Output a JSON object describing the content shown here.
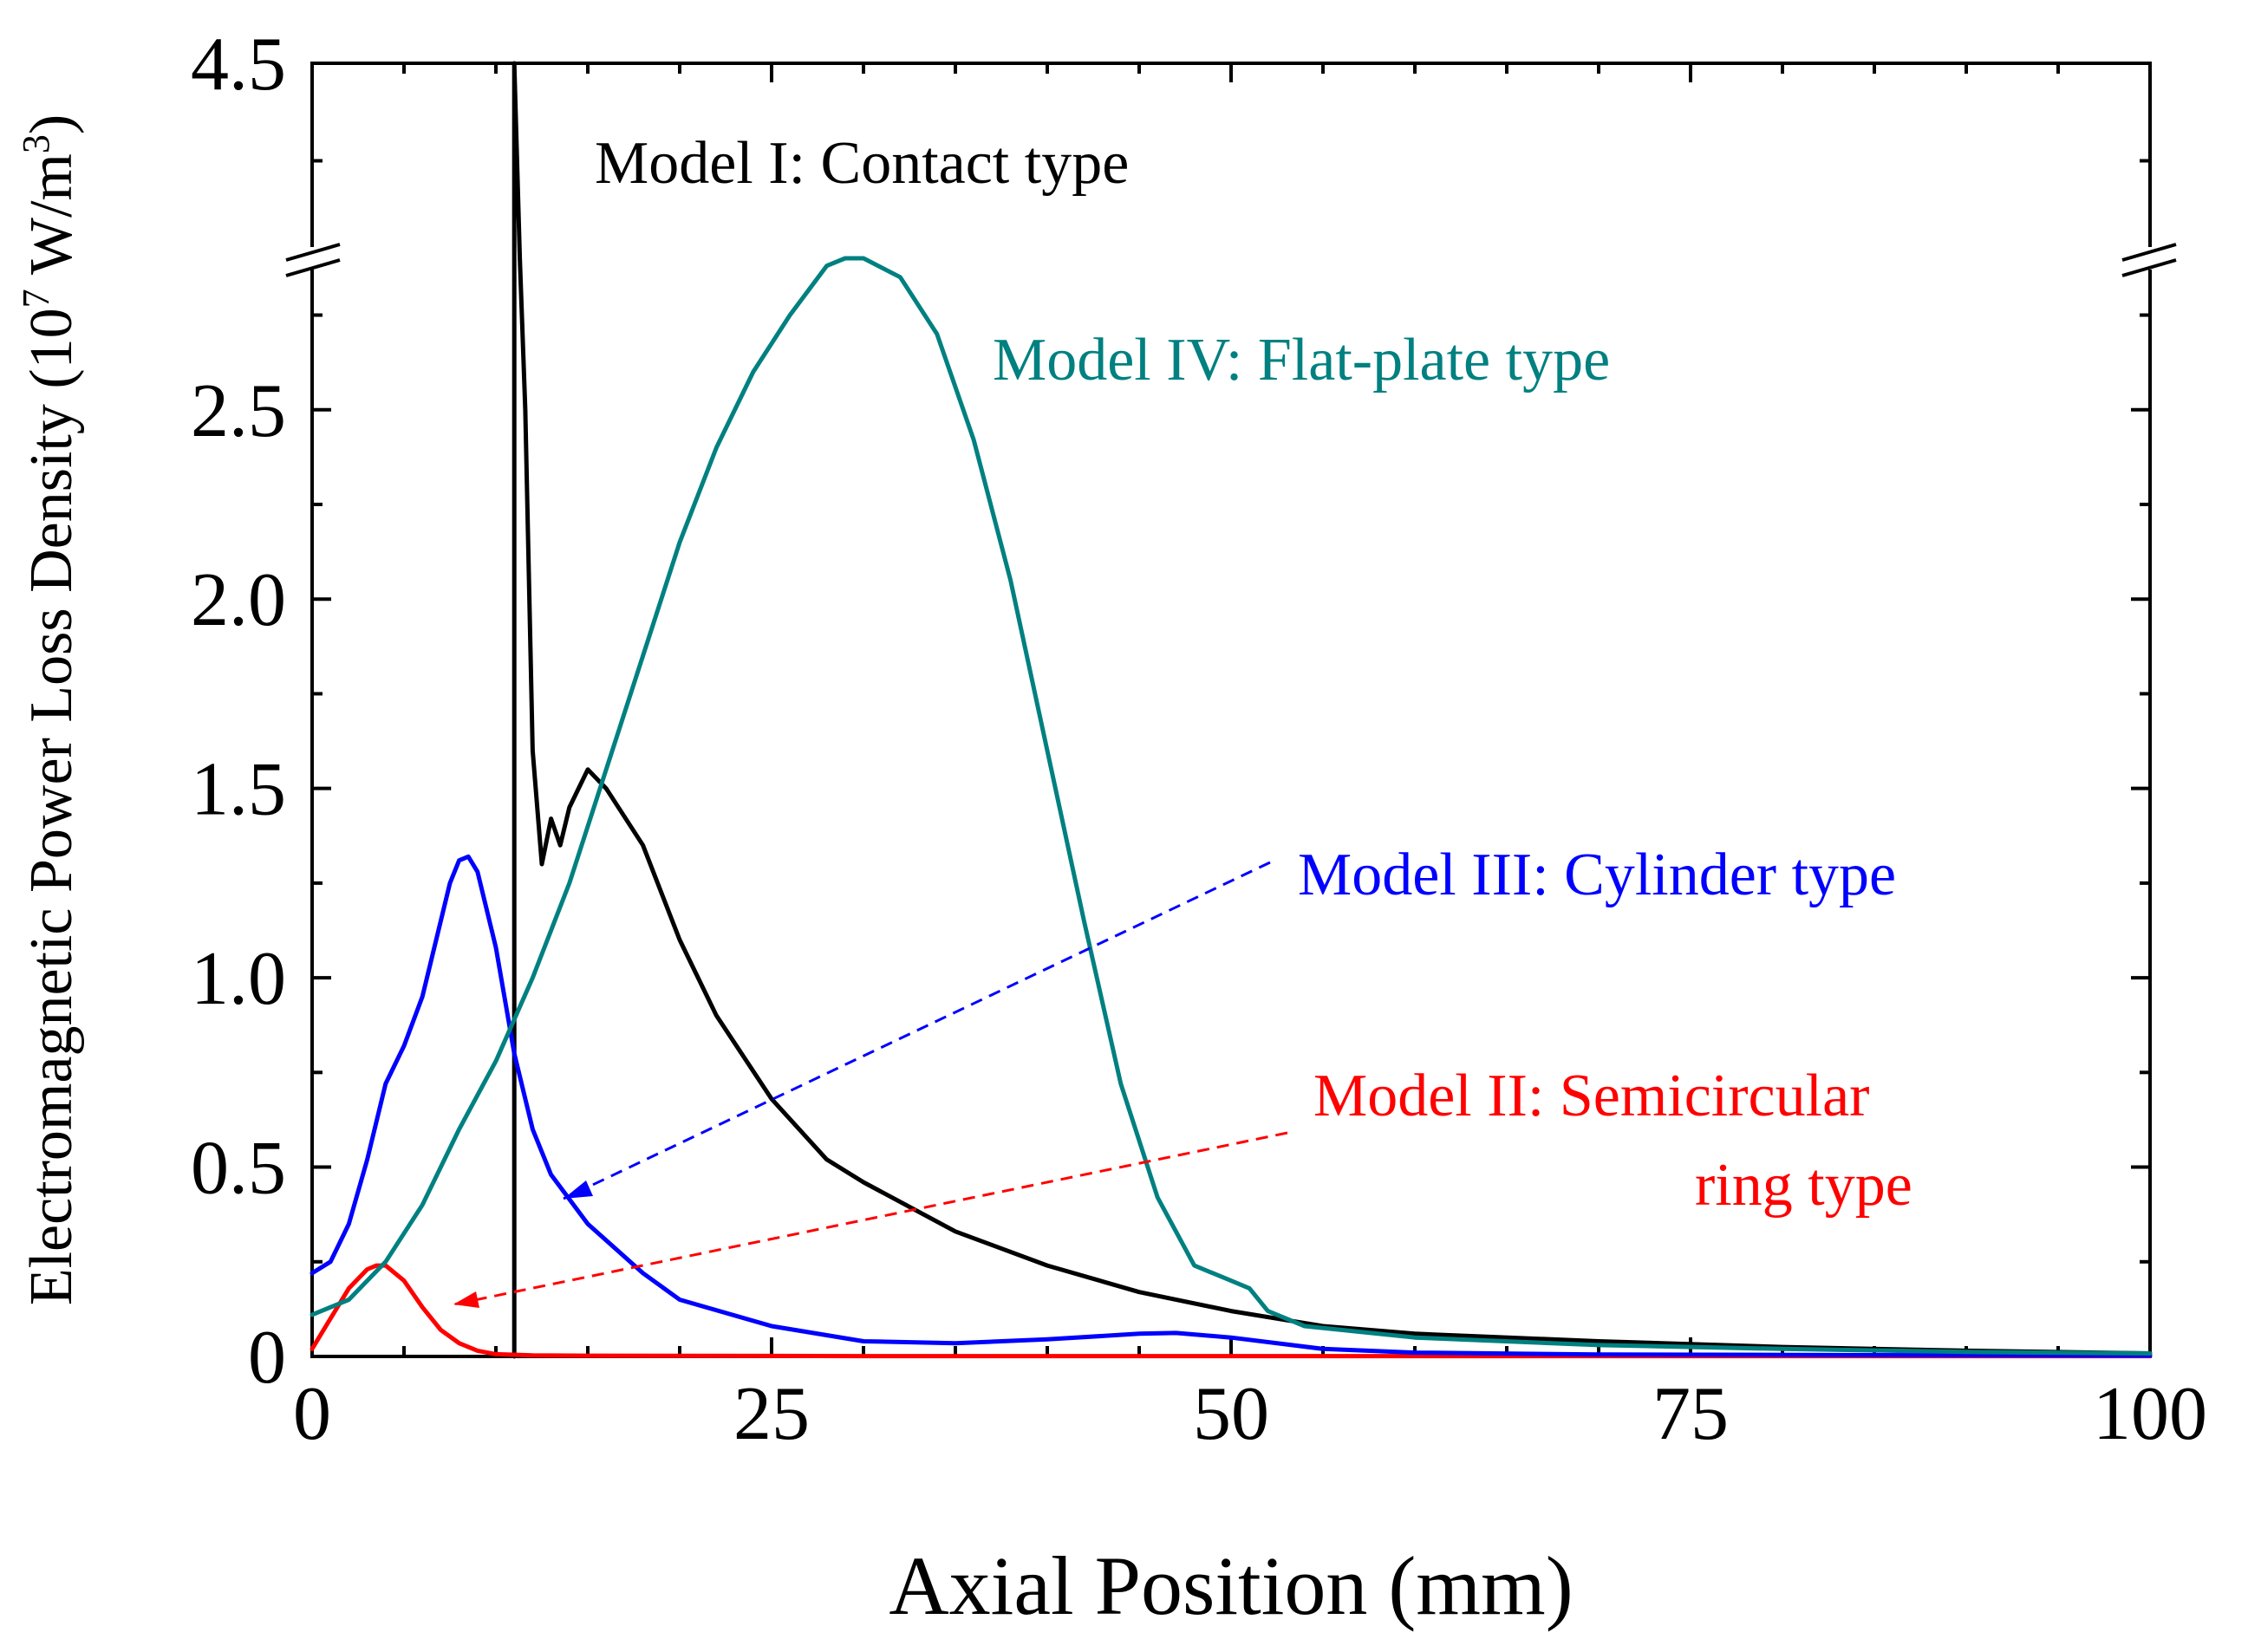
{
  "chart_data": {
    "type": "line",
    "title": "",
    "xlabel": "Axial Position (mm)",
    "ylabel_main": "Electromagnetic Power Loss Density (10",
    "ylabel_sup": "7",
    "ylabel_unit": " W/m",
    "ylabel_sup2": "3",
    "ylabel_close": ")",
    "xlim": [
      0,
      100
    ],
    "ylim_lower": [
      0,
      2.9
    ],
    "ylim_upper": [
      4.0,
      4.5
    ],
    "x_ticks": [
      0,
      25,
      50,
      75,
      100
    ],
    "x_tick_labels": [
      "0",
      "25",
      "50",
      "75",
      "100"
    ],
    "y_ticks": [
      0,
      0.5,
      1.0,
      1.5,
      2.0,
      2.5,
      4.5
    ],
    "y_tick_labels": [
      "0",
      "0.5",
      "1.0",
      "1.5",
      "2.0",
      "2.5",
      "4.5"
    ],
    "grid": false,
    "series": [
      {
        "name": "Model I: Contact type",
        "color": "#000000",
        "points": [
          [
            11,
            0
          ],
          [
            11,
            4.5
          ],
          [
            11.3,
            3.2
          ],
          [
            11.6,
            2.5
          ],
          [
            12,
            1.6
          ],
          [
            12.5,
            1.3
          ],
          [
            13,
            1.42
          ],
          [
            13.5,
            1.35
          ],
          [
            14,
            1.45
          ],
          [
            15,
            1.55
          ],
          [
            16,
            1.5
          ],
          [
            18,
            1.35
          ],
          [
            20,
            1.1
          ],
          [
            22,
            0.9
          ],
          [
            25,
            0.68
          ],
          [
            28,
            0.52
          ],
          [
            30,
            0.46
          ],
          [
            35,
            0.33
          ],
          [
            40,
            0.24
          ],
          [
            45,
            0.17
          ],
          [
            50,
            0.12
          ],
          [
            55,
            0.08
          ],
          [
            60,
            0.06
          ],
          [
            70,
            0.04
          ],
          [
            80,
            0.025
          ],
          [
            90,
            0.015
          ],
          [
            100,
            0.008
          ]
        ]
      },
      {
        "name": "Model II: Semicircular ring type",
        "color": "#ff0000",
        "points": [
          [
            0,
            0.02
          ],
          [
            1,
            0.1
          ],
          [
            2,
            0.18
          ],
          [
            3,
            0.23
          ],
          [
            3.5,
            0.24
          ],
          [
            4,
            0.24
          ],
          [
            5,
            0.2
          ],
          [
            6,
            0.13
          ],
          [
            7,
            0.07
          ],
          [
            8,
            0.035
          ],
          [
            9,
            0.015
          ],
          [
            10,
            0.006
          ],
          [
            12,
            0.003
          ],
          [
            15,
            0.002
          ],
          [
            30,
            0.001
          ],
          [
            50,
            0.001
          ],
          [
            100,
            0.001
          ]
        ]
      },
      {
        "name": "Model III: Cylinder type",
        "color": "#0000ff",
        "points": [
          [
            0,
            0.22
          ],
          [
            1,
            0.25
          ],
          [
            2,
            0.35
          ],
          [
            3,
            0.52
          ],
          [
            4,
            0.72
          ],
          [
            5,
            0.82
          ],
          [
            6,
            0.95
          ],
          [
            7,
            1.15
          ],
          [
            7.5,
            1.25
          ],
          [
            8,
            1.31
          ],
          [
            8.5,
            1.32
          ],
          [
            9,
            1.28
          ],
          [
            10,
            1.08
          ],
          [
            11,
            0.8
          ],
          [
            12,
            0.6
          ],
          [
            13,
            0.48
          ],
          [
            15,
            0.35
          ],
          [
            18,
            0.22
          ],
          [
            20,
            0.15
          ],
          [
            25,
            0.08
          ],
          [
            30,
            0.04
          ],
          [
            35,
            0.035
          ],
          [
            40,
            0.045
          ],
          [
            45,
            0.06
          ],
          [
            47,
            0.062
          ],
          [
            50,
            0.05
          ],
          [
            55,
            0.02
          ],
          [
            60,
            0.01
          ],
          [
            70,
            0.005
          ],
          [
            100,
            0.002
          ]
        ]
      },
      {
        "name": "Model IV: Flat-plate type",
        "color": "#008080",
        "points": [
          [
            0,
            0.11
          ],
          [
            2,
            0.15
          ],
          [
            4,
            0.25
          ],
          [
            6,
            0.4
          ],
          [
            8,
            0.6
          ],
          [
            10,
            0.78
          ],
          [
            12,
            1.0
          ],
          [
            14,
            1.25
          ],
          [
            16,
            1.55
          ],
          [
            18,
            1.85
          ],
          [
            20,
            2.15
          ],
          [
            22,
            2.4
          ],
          [
            24,
            2.6
          ],
          [
            26,
            2.75
          ],
          [
            28,
            2.88
          ],
          [
            29,
            2.91
          ],
          [
            30,
            2.9
          ],
          [
            32,
            2.85
          ],
          [
            34,
            2.7
          ],
          [
            36,
            2.42
          ],
          [
            38,
            2.05
          ],
          [
            40,
            1.6
          ],
          [
            42,
            1.15
          ],
          [
            44,
            0.72
          ],
          [
            46,
            0.42
          ],
          [
            48,
            0.24
          ],
          [
            50,
            0.2
          ],
          [
            51,
            0.18
          ],
          [
            52,
            0.12
          ],
          [
            54,
            0.08
          ],
          [
            56,
            0.07
          ],
          [
            60,
            0.05
          ],
          [
            70,
            0.03
          ],
          [
            80,
            0.02
          ],
          [
            90,
            0.012
          ],
          [
            100,
            0.008
          ]
        ]
      }
    ],
    "annotations": {
      "model1": "Model I: Contact type",
      "model4": "Model IV: Flat-plate type",
      "model3": "Model III: Cylinder type",
      "model2_line1": "Model II: Semicircular",
      "model2_line2": "ring type"
    }
  }
}
